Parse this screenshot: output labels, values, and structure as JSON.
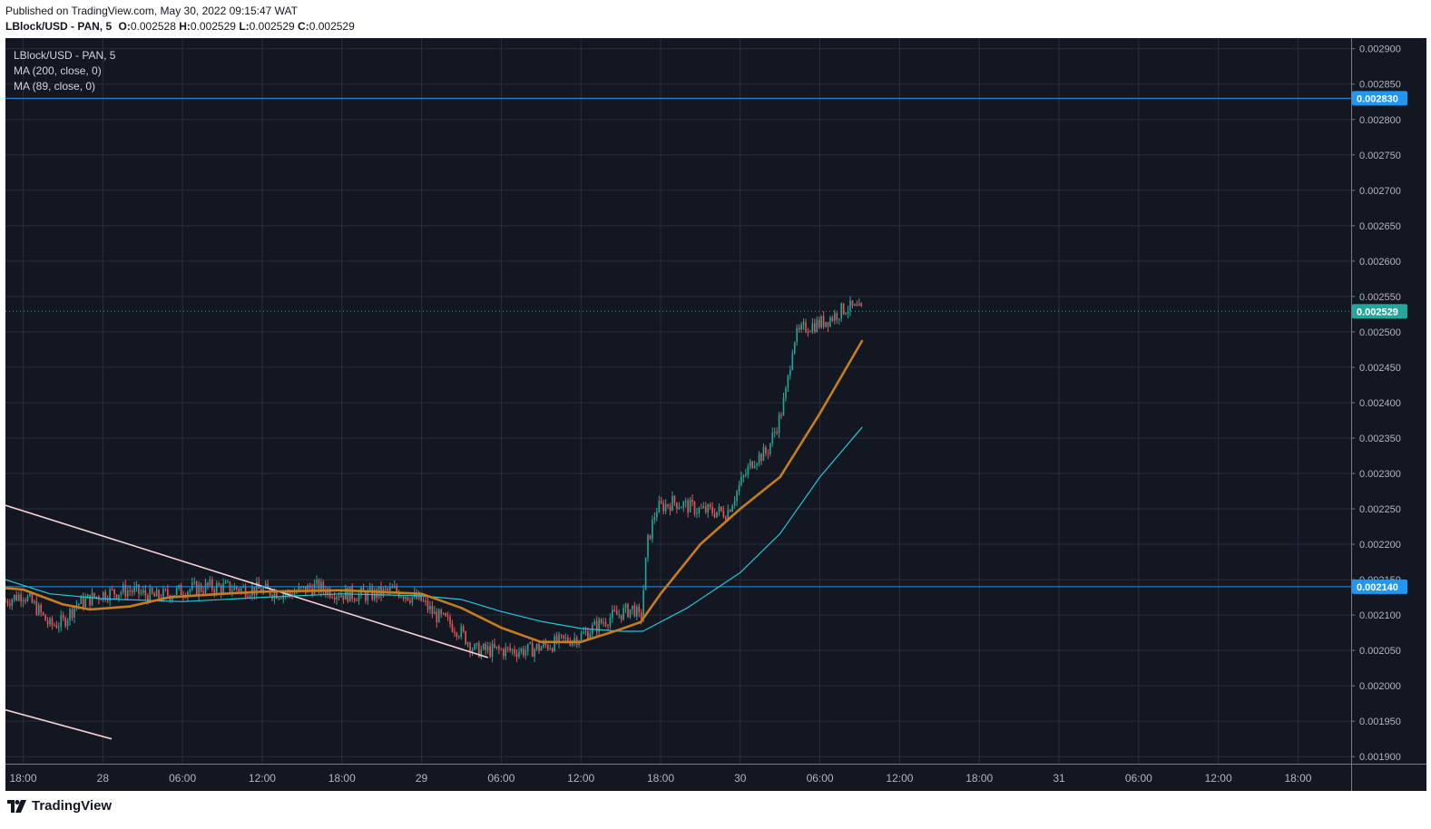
{
  "header": {
    "published": "Published on TradingView.com, May 30, 2022 09:15:47 WAT",
    "symbol": "LBlock/USD - PAN, 5",
    "o_label": "O:",
    "o_value": "0.002528",
    "h_label": "H:",
    "h_value": "0.002529",
    "l_label": "L:",
    "l_value": "0.002529",
    "c_label": "C:",
    "c_value": "0.002529"
  },
  "legend": {
    "symbol": "LBlock/USD - PAN, 5",
    "ma1": "MA (200, close, 0)",
    "ma2": "MA (89, close, 0)"
  },
  "brand": {
    "name": "TradingView",
    "logo_icon": "tradingview-logo-icon"
  },
  "colors": {
    "background": "#131722",
    "grid": "#2a2e39",
    "ma200": "#26c6da",
    "ma89": "#c67c1f",
    "trendline": "#f5d0d6",
    "hline": "#2196f3",
    "up": "#26a69a",
    "down": "#ef5350",
    "last_price": "#26a69a"
  },
  "chart_data": {
    "type": "line",
    "symbol": "LBlock/USD",
    "exchange": "PAN",
    "interval": "5",
    "ylim": [
      0.00189,
      0.002915
    ],
    "y_ticks": [
      "0.002900",
      "0.002850",
      "0.002800",
      "0.002750",
      "0.002700",
      "0.002650",
      "0.002600",
      "0.002550",
      "0.002500",
      "0.002450",
      "0.002400",
      "0.002350",
      "0.002300",
      "0.002250",
      "0.002200",
      "0.002150",
      "0.002100",
      "0.002050",
      "0.002000",
      "0.001950",
      "0.001900"
    ],
    "x_range": [
      "2022-05-27 16:40",
      "2022-05-31 22:00"
    ],
    "x_ticks": [
      {
        "label": "18:00",
        "t": "2022-05-27 18:00"
      },
      {
        "label": "28",
        "t": "2022-05-28 00:00"
      },
      {
        "label": "06:00",
        "t": "2022-05-28 06:00"
      },
      {
        "label": "12:00",
        "t": "2022-05-28 12:00"
      },
      {
        "label": "18:00",
        "t": "2022-05-28 18:00"
      },
      {
        "label": "29",
        "t": "2022-05-29 00:00"
      },
      {
        "label": "06:00",
        "t": "2022-05-29 06:00"
      },
      {
        "label": "12:00",
        "t": "2022-05-29 12:00"
      },
      {
        "label": "18:00",
        "t": "2022-05-29 18:00"
      },
      {
        "label": "30",
        "t": "2022-05-30 00:00"
      },
      {
        "label": "06:00",
        "t": "2022-05-30 06:00"
      },
      {
        "label": "12:00",
        "t": "2022-05-30 12:00"
      },
      {
        "label": "18:00",
        "t": "2022-05-30 18:00"
      },
      {
        "label": "31",
        "t": "2022-05-31 00:00"
      },
      {
        "label": "06:00",
        "t": "2022-05-31 06:00"
      },
      {
        "label": "12:00",
        "t": "2022-05-31 12:00"
      },
      {
        "label": "18:00",
        "t": "2022-05-31 18:00"
      }
    ],
    "series": [
      {
        "name": "MA (200, close, 0)",
        "color": "#26c6da",
        "points": [
          [
            "2022-05-27 16:40",
            0.00215
          ],
          [
            "2022-05-27 20:00",
            0.00213
          ],
          [
            "2022-05-28 00:00",
            0.002123
          ],
          [
            "2022-05-28 06:00",
            0.002119
          ],
          [
            "2022-05-28 12:00",
            0.002125
          ],
          [
            "2022-05-28 18:00",
            0.00213
          ],
          [
            "2022-05-29 00:00",
            0.002127
          ],
          [
            "2022-05-29 03:00",
            0.002122
          ],
          [
            "2022-05-29 06:00",
            0.002105
          ],
          [
            "2022-05-29 09:00",
            0.002091
          ],
          [
            "2022-05-29 12:00",
            0.002081
          ],
          [
            "2022-05-29 15:00",
            0.002077
          ],
          [
            "2022-05-29 16:40",
            0.002077
          ],
          [
            "2022-05-29 20:00",
            0.00211
          ],
          [
            "2022-05-30 00:00",
            0.00216
          ],
          [
            "2022-05-30 03:00",
            0.002215
          ],
          [
            "2022-05-30 06:00",
            0.002295
          ],
          [
            "2022-05-30 09:10",
            0.002365
          ]
        ]
      },
      {
        "name": "MA (89, close, 0)",
        "color": "#c67c1f",
        "points": [
          [
            "2022-05-27 16:40",
            0.002138
          ],
          [
            "2022-05-27 18:00",
            0.002136
          ],
          [
            "2022-05-27 21:00",
            0.002115
          ],
          [
            "2022-05-27 23:00",
            0.002108
          ],
          [
            "2022-05-28 02:00",
            0.002112
          ],
          [
            "2022-05-28 05:00",
            0.002125
          ],
          [
            "2022-05-28 09:00",
            0.00213
          ],
          [
            "2022-05-28 12:00",
            0.002133
          ],
          [
            "2022-05-28 18:00",
            0.002135
          ],
          [
            "2022-05-29 00:00",
            0.00213
          ],
          [
            "2022-05-29 03:00",
            0.00211
          ],
          [
            "2022-05-29 06:00",
            0.002082
          ],
          [
            "2022-05-29 09:00",
            0.002062
          ],
          [
            "2022-05-29 12:00",
            0.002062
          ],
          [
            "2022-05-29 15:00",
            0.00208
          ],
          [
            "2022-05-29 16:30",
            0.00209
          ],
          [
            "2022-05-29 18:00",
            0.00213
          ],
          [
            "2022-05-29 21:00",
            0.0022
          ],
          [
            "2022-05-30 00:00",
            0.00225
          ],
          [
            "2022-05-30 03:00",
            0.002295
          ],
          [
            "2022-05-30 06:00",
            0.002385
          ],
          [
            "2022-05-30 09:10",
            0.002487
          ]
        ]
      },
      {
        "name": "price",
        "color": "#26a69a",
        "points": [
          [
            "2022-05-27 16:40",
            0.00212
          ],
          [
            "2022-05-27 18:00",
            0.00213
          ],
          [
            "2022-05-27 19:00",
            0.00211
          ],
          [
            "2022-05-27 20:00",
            0.002085
          ],
          [
            "2022-05-27 21:00",
            0.00209
          ],
          [
            "2022-05-27 22:00",
            0.002115
          ],
          [
            "2022-05-28 00:00",
            0.00213
          ],
          [
            "2022-05-28 02:00",
            0.002135
          ],
          [
            "2022-05-28 04:00",
            0.002125
          ],
          [
            "2022-05-28 06:00",
            0.002135
          ],
          [
            "2022-05-28 08:00",
            0.00214
          ],
          [
            "2022-05-28 10:00",
            0.002138
          ],
          [
            "2022-05-28 12:00",
            0.002135
          ],
          [
            "2022-05-28 14:00",
            0.00213
          ],
          [
            "2022-05-28 16:00",
            0.00214
          ],
          [
            "2022-05-28 18:00",
            0.00213
          ],
          [
            "2022-05-28 20:00",
            0.002128
          ],
          [
            "2022-05-28 22:00",
            0.002135
          ],
          [
            "2022-05-29 00:00",
            0.00212
          ],
          [
            "2022-05-29 01:00",
            0.0021
          ],
          [
            "2022-05-29 02:00",
            0.00209
          ],
          [
            "2022-05-29 03:00",
            0.002075
          ],
          [
            "2022-05-29 04:00",
            0.00205
          ],
          [
            "2022-05-29 06:00",
            0.00205
          ],
          [
            "2022-05-29 08:00",
            0.00205
          ],
          [
            "2022-05-29 10:00",
            0.00206
          ],
          [
            "2022-05-29 12:00",
            0.00207
          ],
          [
            "2022-05-29 14:00",
            0.002095
          ],
          [
            "2022-05-29 16:00",
            0.00211
          ],
          [
            "2022-05-29 16:30",
            0.00209
          ],
          [
            "2022-05-29 16:45",
            0.002145
          ],
          [
            "2022-05-29 17:00",
            0.0022
          ],
          [
            "2022-05-29 17:40",
            0.00225
          ],
          [
            "2022-05-29 19:00",
            0.00226
          ],
          [
            "2022-05-29 21:00",
            0.002248
          ],
          [
            "2022-05-29 23:00",
            0.002245
          ],
          [
            "2022-05-30 00:00",
            0.002285
          ],
          [
            "2022-05-30 01:00",
            0.00232
          ],
          [
            "2022-05-30 02:00",
            0.00233
          ],
          [
            "2022-05-30 03:00",
            0.00238
          ],
          [
            "2022-05-30 03:30",
            0.00242
          ],
          [
            "2022-05-30 04:00",
            0.00249
          ],
          [
            "2022-05-30 05:00",
            0.002508
          ],
          [
            "2022-05-30 06:00",
            0.002512
          ],
          [
            "2022-05-30 07:00",
            0.002522
          ],
          [
            "2022-05-30 08:00",
            0.002535
          ],
          [
            "2022-05-30 09:10",
            0.002529
          ]
        ]
      }
    ],
    "trendlines": [
      {
        "from": [
          "2022-05-27 16:40",
          0.002255
        ],
        "to": [
          "2022-05-29 05:00",
          0.00204
        ],
        "color": "#f5d0d6"
      },
      {
        "from": [
          "2022-05-27 16:40",
          0.001966
        ],
        "to": [
          "2022-05-28 00:40",
          0.001925
        ],
        "color": "#f5d0d6"
      }
    ],
    "horizontal_lines": [
      {
        "value": 0.00283,
        "label": "0.002830",
        "color": "#2196f3",
        "style": "solid"
      },
      {
        "value": 0.00214,
        "label": "0.002140",
        "color": "#2196f3",
        "style": "solid"
      },
      {
        "value": 0.002529,
        "label": "0.002529",
        "color": "#26a69a",
        "style": "dotted"
      }
    ],
    "grid": true
  }
}
